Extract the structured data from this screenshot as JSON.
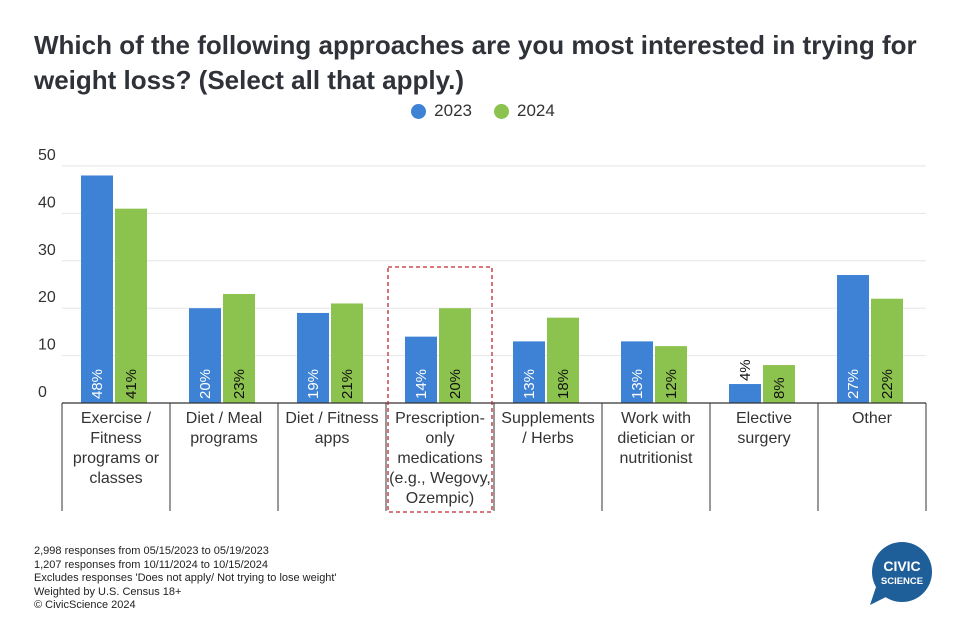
{
  "chart_data": {
    "type": "bar",
    "title": "Which of the following approaches are you most interested in trying for weight loss? (Select all that apply.)",
    "categories": [
      [
        "Exercise /",
        "Fitness",
        "programs or",
        "classes"
      ],
      [
        "Diet / Meal",
        "programs"
      ],
      [
        "Diet / Fitness",
        "apps"
      ],
      [
        "Prescription-",
        "only",
        "medications",
        "(e.g., Wegovy,",
        "Ozempic)"
      ],
      [
        "Supplements",
        "/ Herbs"
      ],
      [
        "Work with",
        "dietician or",
        "nutritionist"
      ],
      [
        "Elective",
        "surgery"
      ],
      [
        "Other"
      ]
    ],
    "series": [
      {
        "name": "2023",
        "color": "#3d82d4",
        "values": [
          48,
          20,
          19,
          14,
          13,
          13,
          4,
          27
        ]
      },
      {
        "name": "2024",
        "color": "#8cc24e",
        "values": [
          41,
          23,
          21,
          20,
          18,
          12,
          8,
          22
        ]
      }
    ],
    "ylim": [
      0,
      50
    ],
    "yticks": [
      0,
      10,
      20,
      30,
      40,
      50
    ],
    "grid": true,
    "legend_position": "top-center",
    "highlighted_category_index": 3,
    "highlight_color": "#c0282d"
  },
  "footer": {
    "lines": [
      "2,998 responses from 05/15/2023 to 05/19/2023",
      "1,207 responses from 10/11/2024 to 10/15/2024",
      "Excludes responses 'Does not apply/ Not trying to lose weight'",
      "Weighted by U.S. Census 18+",
      "© CivicScience 2024"
    ]
  },
  "logo": {
    "line1": "CIVIC",
    "line2": "SCIENCE",
    "color": "#1f5f99"
  }
}
